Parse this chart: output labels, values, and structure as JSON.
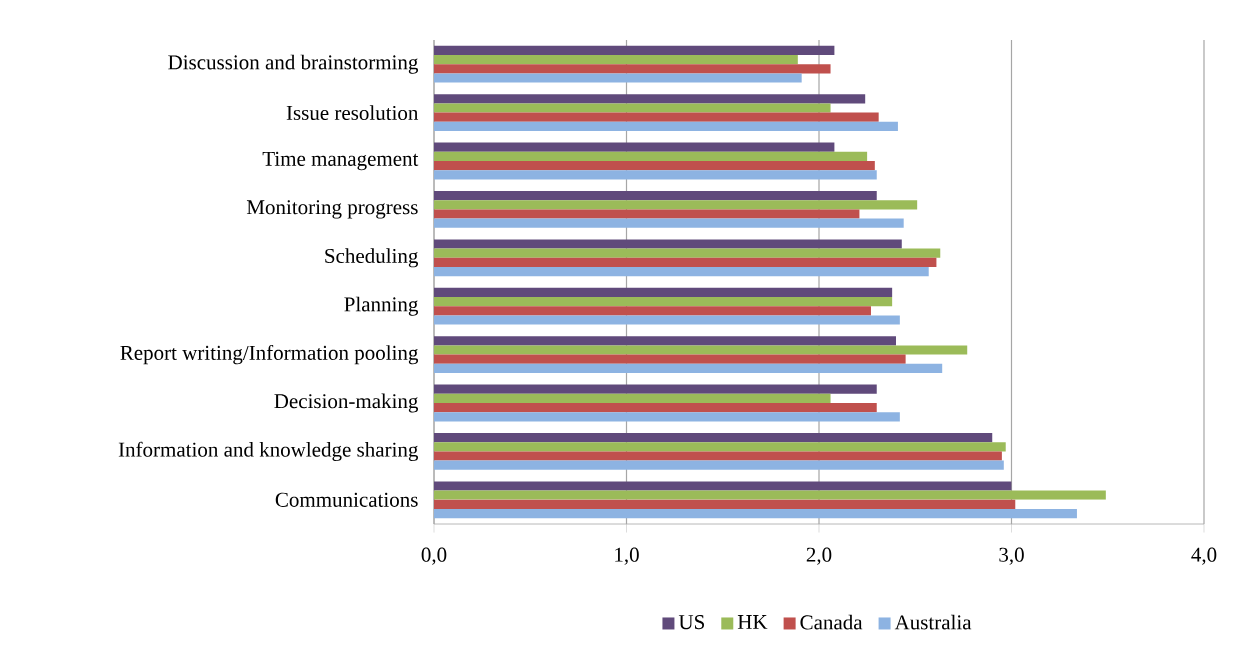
{
  "chart_data": {
    "type": "bar",
    "orientation": "horizontal",
    "categories": [
      "Discussion and brainstorming",
      "Issue resolution",
      "Time management",
      "Monitoring progress",
      "Scheduling",
      "Planning",
      "Report writing/Information pooling",
      "Decision-making",
      "Information and knowledge sharing",
      "Communications"
    ],
    "series": [
      {
        "name": "US",
        "color": "#604a7b",
        "values": [
          2.08,
          2.24,
          2.08,
          2.3,
          2.43,
          2.38,
          2.4,
          2.3,
          2.9,
          3.0
        ]
      },
      {
        "name": "HK",
        "color": "#9bbb59",
        "values": [
          1.89,
          2.06,
          2.25,
          2.51,
          2.63,
          2.38,
          2.77,
          2.06,
          2.97,
          3.49
        ]
      },
      {
        "name": "Canada",
        "color": "#c0504d",
        "values": [
          2.06,
          2.31,
          2.29,
          2.21,
          2.61,
          2.27,
          2.45,
          2.3,
          2.95,
          3.02
        ]
      },
      {
        "name": "Australia",
        "color": "#8db3e2",
        "values": [
          1.91,
          2.41,
          2.3,
          2.44,
          2.57,
          2.42,
          2.64,
          2.42,
          2.96,
          3.34
        ]
      }
    ],
    "xlim": [
      0,
      4
    ],
    "xticks": [
      {
        "value": 0,
        "label": "0,0"
      },
      {
        "value": 1,
        "label": "1,0"
      },
      {
        "value": 2,
        "label": "2,0"
      },
      {
        "value": 3,
        "label": "3,0"
      },
      {
        "value": 4,
        "label": "4,0"
      }
    ],
    "grid": "x",
    "legend": "bottom"
  }
}
